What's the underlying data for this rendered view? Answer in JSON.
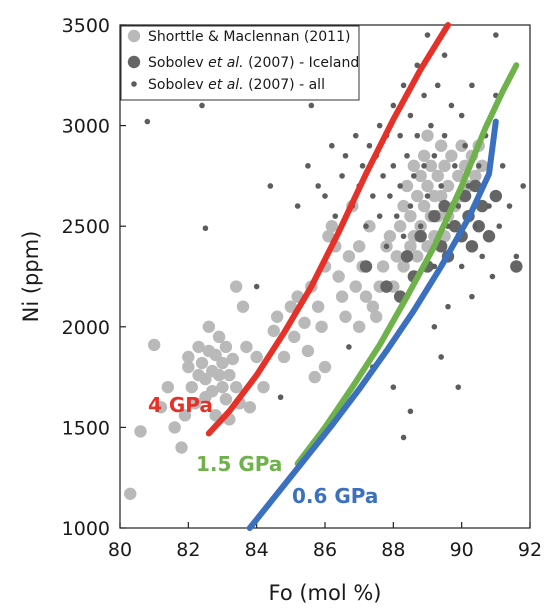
{
  "chart_data": {
    "type": "scatter",
    "xlabel": "Fo (mol %)",
    "ylabel": "Ni (ppm)",
    "xlim": [
      80,
      92
    ],
    "ylim": [
      1000,
      3500
    ],
    "xticks": [
      "80",
      "82",
      "84",
      "86",
      "88",
      "90",
      "92"
    ],
    "yticks": [
      "1000",
      "1500",
      "2000",
      "2500",
      "3000",
      "3500"
    ],
    "grid": false,
    "legend_position": "top-left",
    "legend": [
      {
        "key": "shortttle",
        "parts": [
          {
            "t": "Shorttle & Maclennan (2011)",
            "i": false
          }
        ]
      },
      {
        "key": "sob_ice",
        "parts": [
          {
            "t": "Sobolev ",
            "i": false
          },
          {
            "t": "et al.",
            "i": true
          },
          {
            "t": " (2007) - Iceland",
            "i": false
          }
        ]
      },
      {
        "key": "sob_all",
        "parts": [
          {
            "t": "Sobolev ",
            "i": false
          },
          {
            "t": "et al.",
            "i": true
          },
          {
            "t": " (2007) - all",
            "i": false
          }
        ]
      }
    ],
    "series": [
      {
        "key": "shortttle",
        "marker": "large-circle",
        "color": "#b9b9b9",
        "points": [
          [
            80.3,
            1170
          ],
          [
            80.6,
            1480
          ],
          [
            81.0,
            1910
          ],
          [
            81.2,
            1600
          ],
          [
            81.4,
            1700
          ],
          [
            81.6,
            1500
          ],
          [
            81.8,
            1400
          ],
          [
            81.9,
            1560
          ],
          [
            82.0,
            1800
          ],
          [
            82.0,
            1850
          ],
          [
            82.1,
            1700
          ],
          [
            82.2,
            1620
          ],
          [
            82.3,
            1760
          ],
          [
            82.3,
            1900
          ],
          [
            82.4,
            1820
          ],
          [
            82.5,
            1650
          ],
          [
            82.5,
            1740
          ],
          [
            82.6,
            1880
          ],
          [
            82.6,
            2000
          ],
          [
            82.7,
            1780
          ],
          [
            82.7,
            1680
          ],
          [
            82.8,
            1860
          ],
          [
            82.8,
            1560
          ],
          [
            82.9,
            1760
          ],
          [
            82.9,
            1950
          ],
          [
            83.0,
            1700
          ],
          [
            83.0,
            1820
          ],
          [
            83.1,
            1640
          ],
          [
            83.1,
            1900
          ],
          [
            83.2,
            1760
          ],
          [
            83.2,
            1540
          ],
          [
            83.3,
            1840
          ],
          [
            83.4,
            1700
          ],
          [
            83.4,
            2200
          ],
          [
            83.5,
            1620
          ],
          [
            83.6,
            2100
          ],
          [
            83.7,
            1900
          ],
          [
            83.8,
            1600
          ],
          [
            84.0,
            1850
          ],
          [
            84.2,
            1700
          ],
          [
            84.5,
            1980
          ],
          [
            84.6,
            2050
          ],
          [
            84.8,
            1850
          ],
          [
            85.0,
            2100
          ],
          [
            85.1,
            1950
          ],
          [
            85.2,
            2150
          ],
          [
            85.4,
            2020
          ],
          [
            85.5,
            1880
          ],
          [
            85.6,
            2200
          ],
          [
            85.7,
            1750
          ],
          [
            85.8,
            2100
          ],
          [
            85.9,
            2000
          ],
          [
            86.0,
            2300
          ],
          [
            86.0,
            1800
          ],
          [
            86.1,
            2450
          ],
          [
            86.2,
            2500
          ],
          [
            86.3,
            2400
          ],
          [
            86.4,
            2250
          ],
          [
            86.5,
            2150
          ],
          [
            86.6,
            2050
          ],
          [
            86.7,
            2350
          ],
          [
            86.8,
            2600
          ],
          [
            86.9,
            2200
          ],
          [
            87.0,
            2400
          ],
          [
            87.0,
            2000
          ],
          [
            87.1,
            2300
          ],
          [
            87.2,
            2150
          ],
          [
            87.3,
            2500
          ],
          [
            87.4,
            2100
          ],
          [
            87.5,
            2050
          ],
          [
            87.6,
            2200
          ],
          [
            87.7,
            2300
          ],
          [
            87.8,
            2400
          ],
          [
            87.9,
            2450
          ],
          [
            88.0,
            2200
          ],
          [
            88.1,
            2350
          ],
          [
            88.2,
            2500
          ],
          [
            88.3,
            2600
          ],
          [
            88.3,
            2300
          ],
          [
            88.4,
            2700
          ],
          [
            88.5,
            2550
          ],
          [
            88.5,
            2400
          ],
          [
            88.6,
            2800
          ],
          [
            88.6,
            2450
          ],
          [
            88.7,
            2650
          ],
          [
            88.7,
            2350
          ],
          [
            88.8,
            2750
          ],
          [
            88.8,
            2500
          ],
          [
            88.9,
            2600
          ],
          [
            88.9,
            2850
          ],
          [
            89.0,
            2400
          ],
          [
            89.0,
            2700
          ],
          [
            89.0,
            2950
          ],
          [
            89.1,
            2550
          ],
          [
            89.1,
            2800
          ],
          [
            89.2,
            2650
          ],
          [
            89.2,
            2450
          ],
          [
            89.3,
            2750
          ],
          [
            89.3,
            2550
          ],
          [
            89.4,
            2900
          ],
          [
            89.4,
            2650
          ],
          [
            89.5,
            2450
          ],
          [
            89.5,
            2800
          ],
          [
            89.6,
            2700
          ],
          [
            89.6,
            2550
          ],
          [
            89.7,
            2850
          ],
          [
            89.8,
            2600
          ],
          [
            89.9,
            2750
          ],
          [
            90.0,
            2900
          ],
          [
            90.0,
            2650
          ],
          [
            90.1,
            2800
          ],
          [
            90.2,
            2700
          ],
          [
            90.3,
            2850
          ],
          [
            90.4,
            2750
          ],
          [
            90.5,
            2900
          ],
          [
            90.6,
            2800
          ]
        ]
      },
      {
        "key": "sob_ice",
        "marker": "medium-circle",
        "color": "#656565",
        "points": [
          [
            87.2,
            2300
          ],
          [
            87.8,
            2200
          ],
          [
            88.2,
            2150
          ],
          [
            88.4,
            2350
          ],
          [
            88.6,
            2250
          ],
          [
            88.8,
            2450
          ],
          [
            89.0,
            2300
          ],
          [
            89.2,
            2550
          ],
          [
            89.4,
            2400
          ],
          [
            89.5,
            2600
          ],
          [
            89.6,
            2350
          ],
          [
            89.8,
            2500
          ],
          [
            90.0,
            2450
          ],
          [
            90.1,
            2650
          ],
          [
            90.2,
            2550
          ],
          [
            90.3,
            2400
          ],
          [
            90.4,
            2700
          ],
          [
            90.5,
            2500
          ],
          [
            90.6,
            2600
          ],
          [
            90.8,
            2450
          ],
          [
            91.0,
            2650
          ],
          [
            91.6,
            2300
          ]
        ]
      },
      {
        "key": "sob_all",
        "marker": "small-circle",
        "color": "#5d5d5d",
        "points": [
          [
            80.8,
            3020
          ],
          [
            82.4,
            3100
          ],
          [
            82.5,
            2490
          ],
          [
            84.4,
            2700
          ],
          [
            85.2,
            2600
          ],
          [
            85.5,
            2800
          ],
          [
            85.8,
            2700
          ],
          [
            86.0,
            2650
          ],
          [
            86.2,
            2900
          ],
          [
            86.3,
            2550
          ],
          [
            86.5,
            2750
          ],
          [
            86.6,
            2850
          ],
          [
            86.8,
            2600
          ],
          [
            86.9,
            2950
          ],
          [
            87.0,
            2700
          ],
          [
            87.1,
            2800
          ],
          [
            87.2,
            2500
          ],
          [
            87.3,
            2900
          ],
          [
            87.4,
            2650
          ],
          [
            87.5,
            2850
          ],
          [
            87.6,
            3000
          ],
          [
            87.6,
            2550
          ],
          [
            87.7,
            2750
          ],
          [
            87.8,
            2950
          ],
          [
            87.8,
            2400
          ],
          [
            87.9,
            2650
          ],
          [
            88.0,
            3100
          ],
          [
            88.0,
            2800
          ],
          [
            88.1,
            2550
          ],
          [
            88.2,
            2950
          ],
          [
            88.2,
            2700
          ],
          [
            88.3,
            3200
          ],
          [
            88.3,
            2450
          ],
          [
            88.4,
            2850
          ],
          [
            88.5,
            3050
          ],
          [
            88.5,
            2600
          ],
          [
            88.6,
            2750
          ],
          [
            88.7,
            3300
          ],
          [
            88.7,
            2950
          ],
          [
            88.8,
            2500
          ],
          [
            88.9,
            3150
          ],
          [
            88.9,
            2800
          ],
          [
            89.0,
            3450
          ],
          [
            89.0,
            2650
          ],
          [
            89.1,
            3000
          ],
          [
            89.2,
            2850
          ],
          [
            89.2,
            2300
          ],
          [
            89.3,
            3200
          ],
          [
            89.4,
            2700
          ],
          [
            89.5,
            3350
          ],
          [
            89.5,
            2950
          ],
          [
            89.6,
            2500
          ],
          [
            89.7,
            3100
          ],
          [
            89.8,
            2800
          ],
          [
            89.9,
            2600
          ],
          [
            90.0,
            3050
          ],
          [
            90.0,
            2300
          ],
          [
            90.1,
            2900
          ],
          [
            90.2,
            2700
          ],
          [
            90.3,
            3200
          ],
          [
            90.4,
            2500
          ],
          [
            90.5,
            2800
          ],
          [
            90.6,
            2350
          ],
          [
            90.7,
            2950
          ],
          [
            90.8,
            2600
          ],
          [
            90.9,
            2250
          ],
          [
            91.0,
            3150
          ],
          [
            91.1,
            2500
          ],
          [
            91.2,
            2800
          ],
          [
            91.4,
            2600
          ],
          [
            91.6,
            2350
          ],
          [
            91.8,
            2700
          ],
          [
            89.2,
            2000
          ],
          [
            89.4,
            1850
          ],
          [
            89.6,
            2100
          ],
          [
            88.0,
            1700
          ],
          [
            88.5,
            1580
          ],
          [
            89.9,
            1700
          ],
          [
            88.3,
            1450
          ],
          [
            86.7,
            1900
          ],
          [
            84.0,
            2200
          ],
          [
            91.0,
            3450
          ],
          [
            85.6,
            3100
          ],
          [
            84.7,
            1650
          ],
          [
            90.3,
            2150
          ],
          [
            87.4,
            1800
          ]
        ]
      }
    ],
    "curves": [
      {
        "label": "4 GPa",
        "color": "#e53128",
        "points": [
          [
            82.6,
            1470
          ],
          [
            83.2,
            1580
          ],
          [
            84.0,
            1760
          ],
          [
            84.8,
            1970
          ],
          [
            85.6,
            2200
          ],
          [
            86.4,
            2470
          ],
          [
            87.2,
            2760
          ],
          [
            88.0,
            3030
          ],
          [
            88.8,
            3280
          ],
          [
            89.6,
            3500
          ]
        ]
      },
      {
        "label": "1.5 GPa",
        "color": "#6fb14a",
        "points": [
          [
            85.2,
            1320
          ],
          [
            86.0,
            1500
          ],
          [
            86.8,
            1700
          ],
          [
            87.6,
            1910
          ],
          [
            88.4,
            2150
          ],
          [
            89.2,
            2400
          ],
          [
            90.0,
            2700
          ],
          [
            90.7,
            2990
          ],
          [
            91.2,
            3170
          ],
          [
            91.6,
            3300
          ]
        ]
      },
      {
        "label": "0.6 GPa",
        "color": "#3b70c0",
        "points": [
          [
            83.8,
            1000
          ],
          [
            84.6,
            1170
          ],
          [
            85.4,
            1340
          ],
          [
            86.2,
            1510
          ],
          [
            87.0,
            1690
          ],
          [
            87.8,
            1880
          ],
          [
            88.6,
            2080
          ],
          [
            89.4,
            2300
          ],
          [
            90.2,
            2540
          ],
          [
            90.8,
            2760
          ],
          [
            91.0,
            3020
          ]
        ]
      }
    ],
    "curve_labels": [
      "4 GPa",
      "1.5 GPa",
      "0.6 GPa"
    ]
  }
}
